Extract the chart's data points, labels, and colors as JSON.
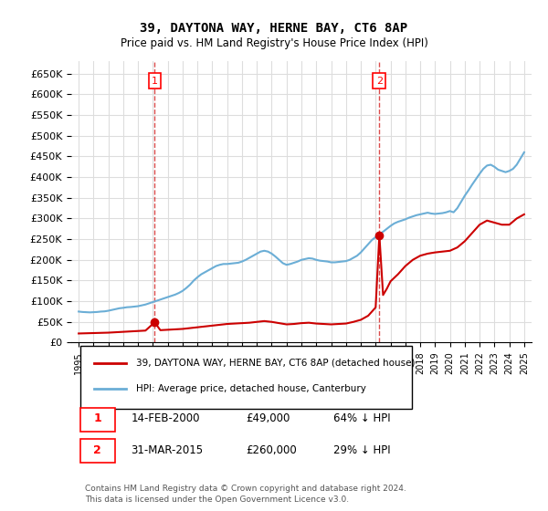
{
  "title": "39, DAYTONA WAY, HERNE BAY, CT6 8AP",
  "subtitle": "Price paid vs. HM Land Registry's House Price Index (HPI)",
  "xlabel": "",
  "ylabel": "",
  "ylim": [
    0,
    680000
  ],
  "yticks": [
    0,
    50000,
    100000,
    150000,
    200000,
    250000,
    300000,
    350000,
    400000,
    450000,
    500000,
    550000,
    600000,
    650000
  ],
  "ytick_labels": [
    "£0",
    "£50K",
    "£100K",
    "£150K",
    "£200K",
    "£250K",
    "£300K",
    "£350K",
    "£400K",
    "£450K",
    "£500K",
    "£550K",
    "£600K",
    "£650K"
  ],
  "hpi_color": "#6baed6",
  "price_color": "#cc0000",
  "vline_color": "#cc0000",
  "vline_style": "dashed",
  "marker1_year": 2000.12,
  "marker2_year": 2015.25,
  "sale1_price": 49000,
  "sale2_price": 260000,
  "annotation1_label": "1",
  "annotation2_label": "2",
  "legend_price_label": "39, DAYTONA WAY, HERNE BAY, CT6 8AP (detached house)",
  "legend_hpi_label": "HPI: Average price, detached house, Canterbury",
  "table_row1": [
    "1",
    "14-FEB-2000",
    "£49,000",
    "64% ↓ HPI"
  ],
  "table_row2": [
    "2",
    "31-MAR-2015",
    "£260,000",
    "29% ↓ HPI"
  ],
  "footer": "Contains HM Land Registry data © Crown copyright and database right 2024.\nThis data is licensed under the Open Government Licence v3.0.",
  "background_color": "#ffffff",
  "grid_color": "#dddddd",
  "hpi_data": [
    [
      1995.0,
      75000
    ],
    [
      1995.25,
      74000
    ],
    [
      1995.5,
      73500
    ],
    [
      1995.75,
      73000
    ],
    [
      1996.0,
      73500
    ],
    [
      1996.25,
      74000
    ],
    [
      1996.5,
      75000
    ],
    [
      1996.75,
      75500
    ],
    [
      1997.0,
      77000
    ],
    [
      1997.25,
      79000
    ],
    [
      1997.5,
      81000
    ],
    [
      1997.75,
      83000
    ],
    [
      1998.0,
      84000
    ],
    [
      1998.25,
      85500
    ],
    [
      1998.5,
      86000
    ],
    [
      1998.75,
      87000
    ],
    [
      1999.0,
      88000
    ],
    [
      1999.25,
      90000
    ],
    [
      1999.5,
      92000
    ],
    [
      1999.75,
      95000
    ],
    [
      2000.0,
      98000
    ],
    [
      2000.25,
      101000
    ],
    [
      2000.5,
      104000
    ],
    [
      2000.75,
      107000
    ],
    [
      2001.0,
      110000
    ],
    [
      2001.25,
      113000
    ],
    [
      2001.5,
      116000
    ],
    [
      2001.75,
      120000
    ],
    [
      2002.0,
      125000
    ],
    [
      2002.25,
      132000
    ],
    [
      2002.5,
      140000
    ],
    [
      2002.75,
      150000
    ],
    [
      2003.0,
      158000
    ],
    [
      2003.25,
      165000
    ],
    [
      2003.5,
      170000
    ],
    [
      2003.75,
      175000
    ],
    [
      2004.0,
      180000
    ],
    [
      2004.25,
      185000
    ],
    [
      2004.5,
      188000
    ],
    [
      2004.75,
      190000
    ],
    [
      2005.0,
      190000
    ],
    [
      2005.25,
      191000
    ],
    [
      2005.5,
      192000
    ],
    [
      2005.75,
      193000
    ],
    [
      2006.0,
      196000
    ],
    [
      2006.25,
      200000
    ],
    [
      2006.5,
      205000
    ],
    [
      2006.75,
      210000
    ],
    [
      2007.0,
      215000
    ],
    [
      2007.25,
      220000
    ],
    [
      2007.5,
      222000
    ],
    [
      2007.75,
      220000
    ],
    [
      2008.0,
      215000
    ],
    [
      2008.25,
      208000
    ],
    [
      2008.5,
      200000
    ],
    [
      2008.75,
      192000
    ],
    [
      2009.0,
      188000
    ],
    [
      2009.25,
      190000
    ],
    [
      2009.5,
      193000
    ],
    [
      2009.75,
      196000
    ],
    [
      2010.0,
      200000
    ],
    [
      2010.25,
      202000
    ],
    [
      2010.5,
      204000
    ],
    [
      2010.75,
      203000
    ],
    [
      2011.0,
      200000
    ],
    [
      2011.25,
      198000
    ],
    [
      2011.5,
      197000
    ],
    [
      2011.75,
      196000
    ],
    [
      2012.0,
      194000
    ],
    [
      2012.25,
      194000
    ],
    [
      2012.5,
      195000
    ],
    [
      2012.75,
      196000
    ],
    [
      2013.0,
      197000
    ],
    [
      2013.25,
      200000
    ],
    [
      2013.5,
      205000
    ],
    [
      2013.75,
      210000
    ],
    [
      2014.0,
      218000
    ],
    [
      2014.25,
      228000
    ],
    [
      2014.5,
      238000
    ],
    [
      2014.75,
      248000
    ],
    [
      2015.0,
      255000
    ],
    [
      2015.25,
      262000
    ],
    [
      2015.5,
      268000
    ],
    [
      2015.75,
      275000
    ],
    [
      2016.0,
      282000
    ],
    [
      2016.25,
      288000
    ],
    [
      2016.5,
      292000
    ],
    [
      2016.75,
      295000
    ],
    [
      2017.0,
      298000
    ],
    [
      2017.25,
      302000
    ],
    [
      2017.5,
      305000
    ],
    [
      2017.75,
      308000
    ],
    [
      2018.0,
      310000
    ],
    [
      2018.25,
      312000
    ],
    [
      2018.5,
      314000
    ],
    [
      2018.75,
      312000
    ],
    [
      2019.0,
      311000
    ],
    [
      2019.25,
      312000
    ],
    [
      2019.5,
      313000
    ],
    [
      2019.75,
      315000
    ],
    [
      2020.0,
      318000
    ],
    [
      2020.25,
      315000
    ],
    [
      2020.5,
      325000
    ],
    [
      2020.75,
      340000
    ],
    [
      2021.0,
      355000
    ],
    [
      2021.25,
      368000
    ],
    [
      2021.5,
      382000
    ],
    [
      2021.75,
      395000
    ],
    [
      2022.0,
      408000
    ],
    [
      2022.25,
      420000
    ],
    [
      2022.5,
      428000
    ],
    [
      2022.75,
      430000
    ],
    [
      2023.0,
      425000
    ],
    [
      2023.25,
      418000
    ],
    [
      2023.5,
      415000
    ],
    [
      2023.75,
      412000
    ],
    [
      2024.0,
      415000
    ],
    [
      2024.25,
      420000
    ],
    [
      2024.5,
      430000
    ],
    [
      2024.75,
      445000
    ],
    [
      2025.0,
      460000
    ]
  ],
  "price_data": [
    [
      1995.0,
      22000
    ],
    [
      1995.5,
      22500
    ],
    [
      1996.0,
      23000
    ],
    [
      1996.5,
      23500
    ],
    [
      1997.0,
      24000
    ],
    [
      1997.5,
      25000
    ],
    [
      1998.0,
      26000
    ],
    [
      1998.5,
      27000
    ],
    [
      1999.0,
      28000
    ],
    [
      1999.5,
      29000
    ],
    [
      2000.12,
      49000
    ],
    [
      2000.5,
      30000
    ],
    [
      2001.0,
      31000
    ],
    [
      2001.5,
      32000
    ],
    [
      2002.0,
      33000
    ],
    [
      2002.5,
      35000
    ],
    [
      2003.0,
      37000
    ],
    [
      2003.5,
      39000
    ],
    [
      2004.0,
      41000
    ],
    [
      2004.5,
      43000
    ],
    [
      2005.0,
      45000
    ],
    [
      2005.5,
      46000
    ],
    [
      2006.0,
      47000
    ],
    [
      2006.5,
      48000
    ],
    [
      2007.0,
      50000
    ],
    [
      2007.5,
      52000
    ],
    [
      2008.0,
      50000
    ],
    [
      2008.5,
      47000
    ],
    [
      2009.0,
      44000
    ],
    [
      2009.5,
      45000
    ],
    [
      2010.0,
      47000
    ],
    [
      2010.5,
      48000
    ],
    [
      2011.0,
      46000
    ],
    [
      2011.5,
      45000
    ],
    [
      2012.0,
      44000
    ],
    [
      2012.5,
      45000
    ],
    [
      2013.0,
      46000
    ],
    [
      2013.5,
      50000
    ],
    [
      2014.0,
      55000
    ],
    [
      2014.5,
      65000
    ],
    [
      2015.0,
      85000
    ],
    [
      2015.25,
      260000
    ],
    [
      2015.5,
      115000
    ],
    [
      2015.75,
      130000
    ],
    [
      2016.0,
      148000
    ],
    [
      2016.5,
      165000
    ],
    [
      2017.0,
      185000
    ],
    [
      2017.5,
      200000
    ],
    [
      2018.0,
      210000
    ],
    [
      2018.5,
      215000
    ],
    [
      2019.0,
      218000
    ],
    [
      2019.5,
      220000
    ],
    [
      2020.0,
      222000
    ],
    [
      2020.5,
      230000
    ],
    [
      2021.0,
      245000
    ],
    [
      2021.5,
      265000
    ],
    [
      2022.0,
      285000
    ],
    [
      2022.5,
      295000
    ],
    [
      2023.0,
      290000
    ],
    [
      2023.5,
      285000
    ],
    [
      2024.0,
      285000
    ],
    [
      2024.5,
      300000
    ],
    [
      2025.0,
      310000
    ]
  ]
}
